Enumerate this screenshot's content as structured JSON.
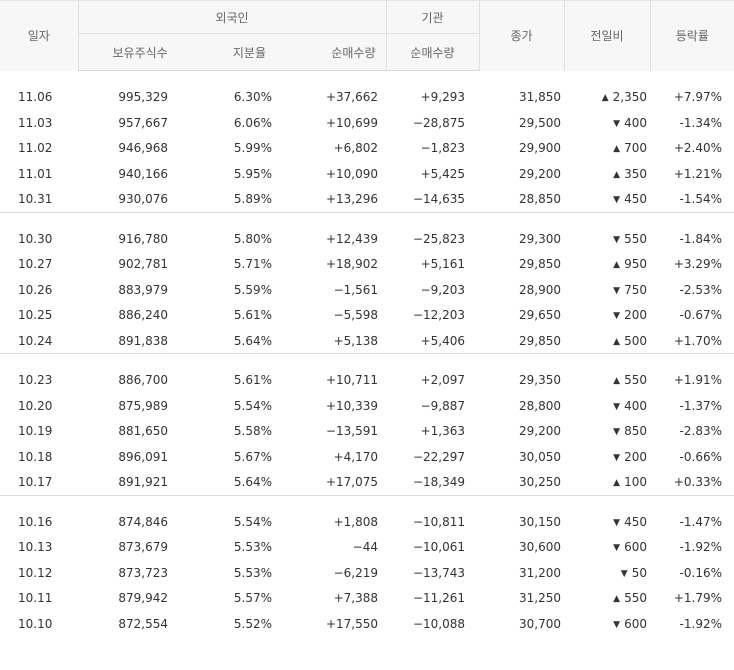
{
  "header": {
    "date": "일자",
    "foreign": "외국인",
    "institution": "기관",
    "close": "종가",
    "diff": "전일비",
    "rate": "등락률",
    "holdings": "보유주식수",
    "ratio": "지분율",
    "foreign_net": "순매수량",
    "inst_net": "순매수량"
  },
  "groups": [
    {
      "rows": [
        {
          "date": "11.06",
          "holdings": "995,329",
          "ratio": "6.30%",
          "foreign_net": "+37,662",
          "inst_net": "+9,293",
          "close": "31,850",
          "diff": "2,350",
          "rate": "+7.97%",
          "dir": "up"
        },
        {
          "date": "11.03",
          "holdings": "957,667",
          "ratio": "6.06%",
          "foreign_net": "+10,699",
          "inst_net": "−28,875",
          "close": "29,500",
          "diff": "400",
          "rate": "-1.34%",
          "dir": "down"
        },
        {
          "date": "11.02",
          "holdings": "946,968",
          "ratio": "5.99%",
          "foreign_net": "+6,802",
          "inst_net": "−1,823",
          "close": "29,900",
          "diff": "700",
          "rate": "+2.40%",
          "dir": "up"
        },
        {
          "date": "11.01",
          "holdings": "940,166",
          "ratio": "5.95%",
          "foreign_net": "+10,090",
          "inst_net": "+5,425",
          "close": "29,200",
          "diff": "350",
          "rate": "+1.21%",
          "dir": "up"
        },
        {
          "date": "10.31",
          "holdings": "930,076",
          "ratio": "5.89%",
          "foreign_net": "+13,296",
          "inst_net": "−14,635",
          "close": "28,850",
          "diff": "450",
          "rate": "-1.54%",
          "dir": "down"
        }
      ]
    },
    {
      "rows": [
        {
          "date": "10.30",
          "holdings": "916,780",
          "ratio": "5.80%",
          "foreign_net": "+12,439",
          "inst_net": "−25,823",
          "close": "29,300",
          "diff": "550",
          "rate": "-1.84%",
          "dir": "down"
        },
        {
          "date": "10.27",
          "holdings": "902,781",
          "ratio": "5.71%",
          "foreign_net": "+18,902",
          "inst_net": "+5,161",
          "close": "29,850",
          "diff": "950",
          "rate": "+3.29%",
          "dir": "up"
        },
        {
          "date": "10.26",
          "holdings": "883,979",
          "ratio": "5.59%",
          "foreign_net": "−1,561",
          "inst_net": "−9,203",
          "close": "28,900",
          "diff": "750",
          "rate": "-2.53%",
          "dir": "down"
        },
        {
          "date": "10.25",
          "holdings": "886,240",
          "ratio": "5.61%",
          "foreign_net": "−5,598",
          "inst_net": "−12,203",
          "close": "29,650",
          "diff": "200",
          "rate": "-0.67%",
          "dir": "down"
        },
        {
          "date": "10.24",
          "holdings": "891,838",
          "ratio": "5.64%",
          "foreign_net": "+5,138",
          "inst_net": "+5,406",
          "close": "29,850",
          "diff": "500",
          "rate": "+1.70%",
          "dir": "up"
        }
      ]
    },
    {
      "rows": [
        {
          "date": "10.23",
          "holdings": "886,700",
          "ratio": "5.61%",
          "foreign_net": "+10,711",
          "inst_net": "+2,097",
          "close": "29,350",
          "diff": "550",
          "rate": "+1.91%",
          "dir": "up"
        },
        {
          "date": "10.20",
          "holdings": "875,989",
          "ratio": "5.54%",
          "foreign_net": "+10,339",
          "inst_net": "−9,887",
          "close": "28,800",
          "diff": "400",
          "rate": "-1.37%",
          "dir": "down"
        },
        {
          "date": "10.19",
          "holdings": "881,650",
          "ratio": "5.58%",
          "foreign_net": "−13,591",
          "inst_net": "+1,363",
          "close": "29,200",
          "diff": "850",
          "rate": "-2.83%",
          "dir": "down"
        },
        {
          "date": "10.18",
          "holdings": "896,091",
          "ratio": "5.67%",
          "foreign_net": "+4,170",
          "inst_net": "−22,297",
          "close": "30,050",
          "diff": "200",
          "rate": "-0.66%",
          "dir": "down"
        },
        {
          "date": "10.17",
          "holdings": "891,921",
          "ratio": "5.64%",
          "foreign_net": "+17,075",
          "inst_net": "−18,349",
          "close": "30,250",
          "diff": "100",
          "rate": "+0.33%",
          "dir": "up"
        }
      ]
    },
    {
      "rows": [
        {
          "date": "10.16",
          "holdings": "874,846",
          "ratio": "5.54%",
          "foreign_net": "+1,808",
          "inst_net": "−10,811",
          "close": "30,150",
          "diff": "450",
          "rate": "-1.47%",
          "dir": "down"
        },
        {
          "date": "10.13",
          "holdings": "873,679",
          "ratio": "5.53%",
          "foreign_net": "−44",
          "inst_net": "−10,061",
          "close": "30,600",
          "diff": "600",
          "rate": "-1.92%",
          "dir": "down"
        },
        {
          "date": "10.12",
          "holdings": "873,723",
          "ratio": "5.53%",
          "foreign_net": "−6,219",
          "inst_net": "−13,743",
          "close": "31,200",
          "diff": "50",
          "rate": "-0.16%",
          "dir": "down"
        },
        {
          "date": "10.11",
          "holdings": "879,942",
          "ratio": "5.57%",
          "foreign_net": "+7,388",
          "inst_net": "−11,261",
          "close": "31,250",
          "diff": "550",
          "rate": "+1.79%",
          "dir": "up"
        },
        {
          "date": "10.10",
          "holdings": "872,554",
          "ratio": "5.52%",
          "foreign_net": "+17,550",
          "inst_net": "−10,088",
          "close": "30,700",
          "diff": "600",
          "rate": "-1.92%",
          "dir": "down"
        }
      ]
    }
  ],
  "colors": {
    "up": "#e01f1f",
    "down": "#1f5fc9",
    "header_bg": "#f7f7f7"
  },
  "icons": {
    "up": "triangle-up-icon",
    "down": "triangle-down-icon"
  }
}
